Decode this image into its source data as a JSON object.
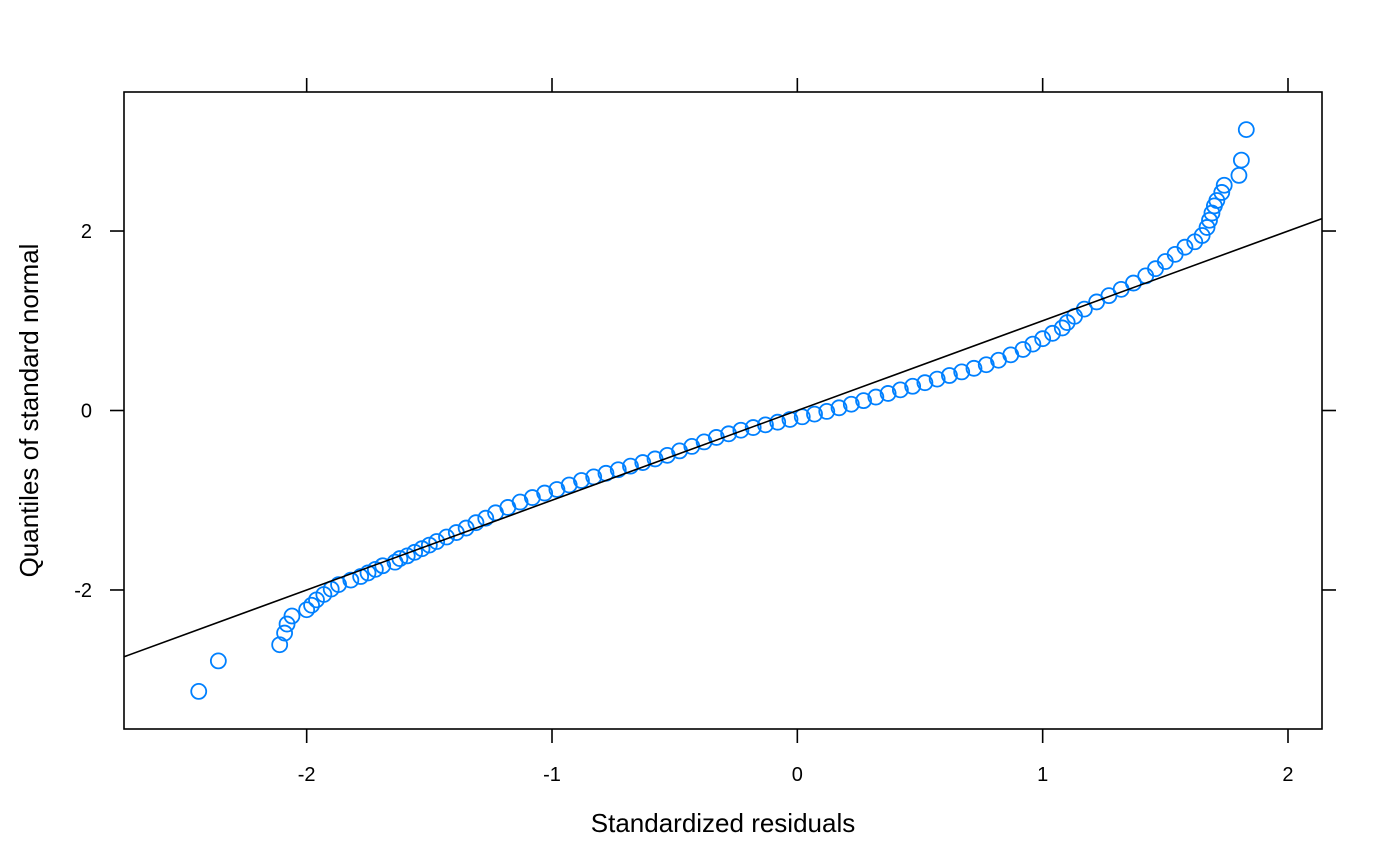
{
  "chart_data": {
    "type": "scatter",
    "title": "",
    "xlabel": "Standardized residuals",
    "ylabel": "Quantiles of standard normal",
    "xlim": [
      -2.7446,
      2.1386
    ],
    "ylim": [
      -3.5491,
      3.5491
    ],
    "x_ticks": [
      -2,
      -1,
      0,
      1,
      2
    ],
    "x_tick_labels": [
      "-2",
      "-1",
      "0",
      "1",
      "2"
    ],
    "y_ticks": [
      -2,
      0,
      2
    ],
    "y_tick_labels": [
      "-2",
      "0",
      "2"
    ],
    "grid": false,
    "legend": "none",
    "point_color": "#0080ff",
    "line_color": "#000000",
    "reference_line": {
      "intercept": 0.0,
      "slope": 1.0
    },
    "series": [
      {
        "points": [
          [
            -2.44,
            -3.13
          ],
          [
            -2.36,
            -2.79
          ],
          [
            -2.11,
            -2.61
          ],
          [
            -2.09,
            -2.48
          ],
          [
            -2.08,
            -2.38
          ],
          [
            -2.06,
            -2.29
          ],
          [
            -2.0,
            -2.22
          ],
          [
            -1.98,
            -2.17
          ],
          [
            -1.96,
            -2.11
          ],
          [
            -1.93,
            -2.05
          ],
          [
            -1.9,
            -1.99
          ],
          [
            -1.87,
            -1.94
          ],
          [
            -1.82,
            -1.89
          ],
          [
            -1.78,
            -1.85
          ],
          [
            -1.75,
            -1.81
          ],
          [
            -1.72,
            -1.77
          ],
          [
            -1.69,
            -1.73
          ],
          [
            -1.64,
            -1.69
          ],
          [
            -1.62,
            -1.65
          ],
          [
            -1.59,
            -1.62
          ],
          [
            -1.56,
            -1.58
          ],
          [
            -1.53,
            -1.54
          ],
          [
            -1.5,
            -1.5
          ],
          [
            -1.47,
            -1.46
          ],
          [
            -1.43,
            -1.41
          ],
          [
            -1.39,
            -1.36
          ],
          [
            -1.35,
            -1.31
          ],
          [
            -1.31,
            -1.25
          ],
          [
            -1.27,
            -1.2
          ],
          [
            -1.23,
            -1.14
          ],
          [
            -1.18,
            -1.08
          ],
          [
            -1.13,
            -1.02
          ],
          [
            -1.08,
            -0.97
          ],
          [
            -1.03,
            -0.92
          ],
          [
            -0.98,
            -0.88
          ],
          [
            -0.93,
            -0.83
          ],
          [
            -0.88,
            -0.78
          ],
          [
            -0.83,
            -0.74
          ],
          [
            -0.78,
            -0.7
          ],
          [
            -0.73,
            -0.66
          ],
          [
            -0.68,
            -0.62
          ],
          [
            -0.63,
            -0.58
          ],
          [
            -0.58,
            -0.54
          ],
          [
            -0.53,
            -0.5
          ],
          [
            -0.48,
            -0.45
          ],
          [
            -0.43,
            -0.4
          ],
          [
            -0.38,
            -0.35
          ],
          [
            -0.33,
            -0.3
          ],
          [
            -0.28,
            -0.26
          ],
          [
            -0.23,
            -0.22
          ],
          [
            -0.18,
            -0.19
          ],
          [
            -0.13,
            -0.16
          ],
          [
            -0.08,
            -0.13
          ],
          [
            -0.03,
            -0.1
          ],
          [
            0.02,
            -0.07
          ],
          [
            0.07,
            -0.04
          ],
          [
            0.12,
            -0.01
          ],
          [
            0.17,
            0.03
          ],
          [
            0.22,
            0.07
          ],
          [
            0.27,
            0.11
          ],
          [
            0.32,
            0.15
          ],
          [
            0.37,
            0.19
          ],
          [
            0.42,
            0.23
          ],
          [
            0.47,
            0.27
          ],
          [
            0.52,
            0.31
          ],
          [
            0.57,
            0.35
          ],
          [
            0.62,
            0.39
          ],
          [
            0.67,
            0.43
          ],
          [
            0.72,
            0.47
          ],
          [
            0.77,
            0.51
          ],
          [
            0.82,
            0.56
          ],
          [
            0.87,
            0.62
          ],
          [
            0.92,
            0.68
          ],
          [
            0.96,
            0.74
          ],
          [
            1.0,
            0.8
          ],
          [
            1.04,
            0.86
          ],
          [
            1.08,
            0.92
          ],
          [
            1.1,
            0.98
          ],
          [
            1.13,
            1.05
          ],
          [
            1.17,
            1.13
          ],
          [
            1.22,
            1.21
          ],
          [
            1.27,
            1.28
          ],
          [
            1.32,
            1.35
          ],
          [
            1.37,
            1.42
          ],
          [
            1.42,
            1.5
          ],
          [
            1.46,
            1.58
          ],
          [
            1.5,
            1.66
          ],
          [
            1.54,
            1.74
          ],
          [
            1.58,
            1.82
          ],
          [
            1.62,
            1.88
          ],
          [
            1.65,
            1.95
          ],
          [
            1.67,
            2.04
          ],
          [
            1.68,
            2.12
          ],
          [
            1.69,
            2.2
          ],
          [
            1.7,
            2.28
          ],
          [
            1.71,
            2.34
          ],
          [
            1.73,
            2.43
          ],
          [
            1.74,
            2.51
          ],
          [
            1.8,
            2.62
          ],
          [
            1.81,
            2.79
          ],
          [
            1.83,
            3.13
          ]
        ]
      }
    ]
  }
}
